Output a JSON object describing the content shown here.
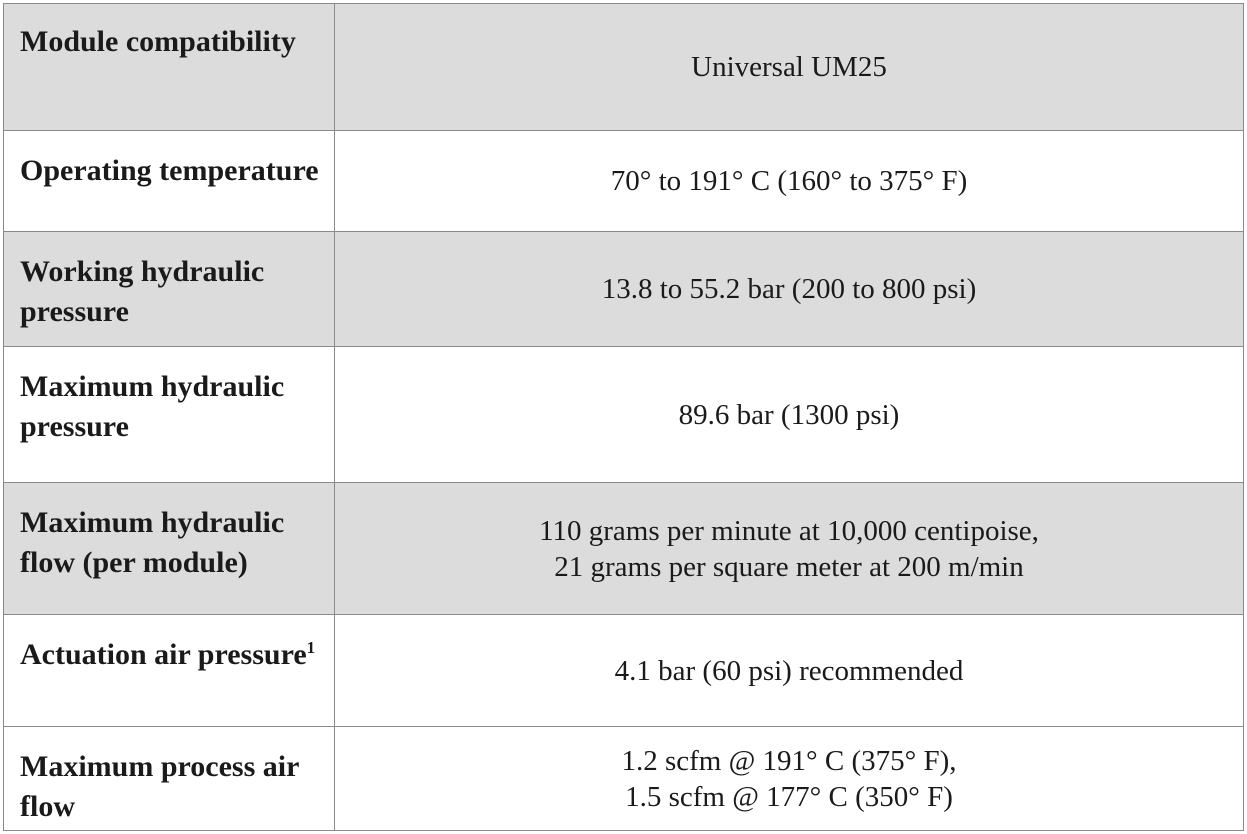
{
  "table": {
    "rows": [
      {
        "label": "Module compatibility",
        "value": [
          "Universal UM25"
        ]
      },
      {
        "label": "Operating temperature",
        "value": [
          "70° to 191° C (160° to 375° F)"
        ]
      },
      {
        "label": "Working hydraulic pressure",
        "value": [
          "13.8 to 55.2 bar (200 to 800 psi)"
        ]
      },
      {
        "label": "Maximum hydraulic pressure",
        "value": [
          "89.6 bar (1300 psi)"
        ]
      },
      {
        "label": "Maximum hydraulic flow (per module)",
        "value": [
          "110 grams per minute at 10,000 centipoise,",
          "21 grams per square meter at 200 m/min"
        ]
      },
      {
        "label": "Actuation air pressure",
        "label_sup": "1",
        "value": [
          "4.1 bar (60 psi) recommended"
        ]
      },
      {
        "label": "Maximum process air flow",
        "value": [
          "1.2 scfm @ 191° C (375° F),",
          "1.5 scfm @ 177° C (350° F)"
        ]
      }
    ]
  }
}
